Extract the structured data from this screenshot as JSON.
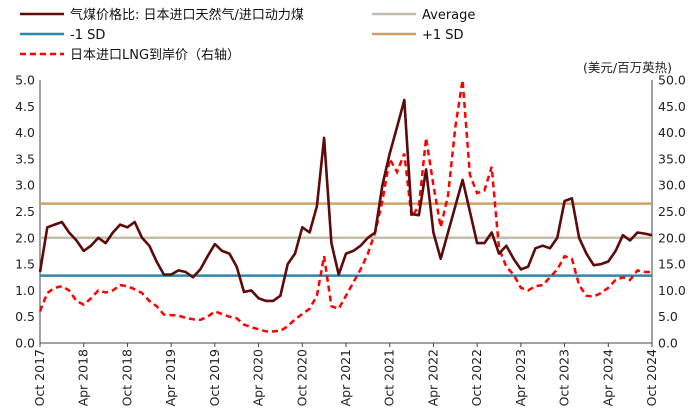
{
  "chart_data": {
    "type": "line",
    "legend": [
      {
        "name": "气煤价格比: 日本进口天然气/进口动力煤",
        "color": "#5c0a0a",
        "style": "solid"
      },
      {
        "name": "Average",
        "color": "#c3bdae",
        "style": "solid"
      },
      {
        "name": "-1 SD",
        "color": "#2e86a8",
        "style": "solid"
      },
      {
        "name": "+1 SD",
        "color": "#c9a46a",
        "style": "solid"
      },
      {
        "name": "日本进口LNG到岸价（右轴）",
        "color": "#ff0000",
        "style": "dashed"
      }
    ],
    "right_unit_label": "(美元/百万英热)",
    "left_axis": {
      "min": 0,
      "max": 5,
      "ticks": [
        "0.0",
        "0.5",
        "1.0",
        "1.5",
        "2.0",
        "2.5",
        "3.0",
        "3.5",
        "4.0",
        "4.5",
        "5.0"
      ]
    },
    "right_axis": {
      "min": 0,
      "max": 50,
      "ticks": [
        "0.0",
        "5.0",
        "10.0",
        "15.0",
        "20.0",
        "25.0",
        "30.0",
        "35.0",
        "40.0",
        "45.0",
        "50.0"
      ]
    },
    "x_tick_labels": [
      "Oct 2017",
      "Apr 2018",
      "Oct 2018",
      "Apr 2019",
      "Oct 2019",
      "Apr 2020",
      "Oct 2020",
      "Apr 2021",
      "Oct 2021",
      "Apr 2022",
      "Oct 2022",
      "Apr 2023",
      "Oct 2023",
      "Apr 2024",
      "Oct 2024"
    ],
    "x_tick_index": [
      0,
      6,
      12,
      18,
      24,
      30,
      36,
      42,
      48,
      54,
      60,
      66,
      72,
      78,
      84
    ],
    "reference_lines": {
      "average": 2.0,
      "minus_1sd": 1.28,
      "plus_1sd": 2.65
    },
    "ratio_series": [
      1.35,
      2.2,
      2.25,
      2.3,
      2.1,
      1.95,
      1.75,
      1.85,
      2.0,
      1.9,
      2.1,
      2.25,
      2.2,
      2.3,
      2.0,
      1.85,
      1.55,
      1.3,
      1.3,
      1.38,
      1.35,
      1.25,
      1.4,
      1.65,
      1.88,
      1.75,
      1.7,
      1.45,
      0.97,
      1.0,
      0.85,
      0.8,
      0.8,
      0.9,
      1.5,
      1.7,
      2.2,
      2.1,
      2.6,
      3.9,
      1.9,
      1.3,
      1.7,
      1.75,
      1.85,
      2.0,
      2.1,
      3.0,
      3.6,
      4.1,
      4.62,
      2.45,
      2.43,
      3.3,
      2.1,
      1.6,
      2.1,
      2.6,
      3.1,
      2.5,
      1.9,
      1.9,
      2.1,
      1.7,
      1.85,
      1.6,
      1.4,
      1.45,
      1.8,
      1.85,
      1.8,
      2.0,
      2.7,
      2.75,
      2.0,
      1.7,
      1.48,
      1.5,
      1.55,
      1.75,
      2.05,
      1.95,
      2.1,
      2.08,
      2.05
    ],
    "lng_series": [
      6.0,
      9.5,
      10.5,
      10.8,
      10.0,
      8.0,
      7.3,
      8.5,
      10.0,
      9.6,
      10.0,
      11.0,
      10.8,
      10.2,
      9.5,
      8.0,
      7.0,
      5.4,
      5.3,
      5.2,
      4.8,
      4.5,
      4.4,
      5.0,
      6.0,
      5.5,
      5.0,
      4.7,
      3.5,
      3.0,
      2.6,
      2.2,
      2.2,
      2.3,
      3.2,
      4.5,
      5.5,
      6.5,
      9.0,
      16.5,
      7.0,
      6.5,
      9.0,
      11.5,
      14.0,
      17.0,
      21.0,
      27.0,
      35.0,
      32.5,
      36.0,
      24.0,
      26.0,
      39.0,
      30.0,
      22.0,
      28.0,
      41.0,
      50.0,
      32.0,
      28.5,
      29.0,
      33.5,
      18.0,
      14.5,
      13.0,
      10.5,
      10.0,
      10.8,
      11.0,
      12.5,
      14.0,
      16.5,
      16.0,
      11.0,
      9.0,
      8.8,
      9.5,
      10.5,
      12.0,
      12.5,
      12.0,
      13.8,
      13.5,
      13.5
    ]
  }
}
